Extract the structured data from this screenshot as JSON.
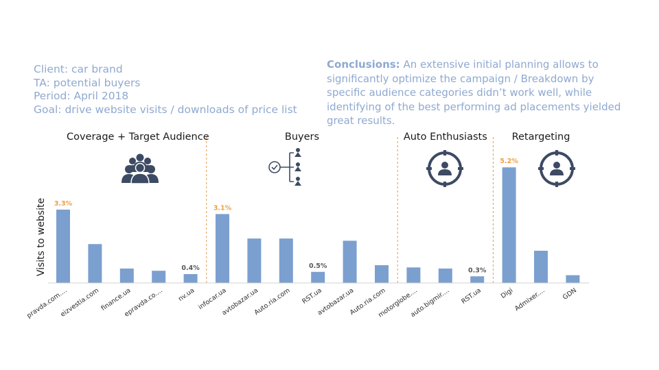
{
  "info": {
    "client": "Client: car brand",
    "ta": "TA:  potential buyers",
    "period": "Period: April 2018",
    "goal": "Goal: drive website visits / downloads of price list"
  },
  "conclusions": {
    "label": "Conclusions:",
    "text": " An extensive initial planning allows to significantly optimize the campaign / Breakdown by specific audience categories didn’t work well, while identifying of the best performing ad placements yielded great results."
  },
  "icons": [
    "group-people-icon",
    "buyers-checklist-icon",
    "target-person-icon",
    "target-person-icon"
  ],
  "chart_data": {
    "type": "bar",
    "ylabel": "Visits to website",
    "bar_color": "#7ba0cf",
    "highlight_label_color": "#f0a040",
    "default_label_color": "#595959",
    "divider_color": "#e39a4a",
    "sections": [
      {
        "title": "Coverage + Target Audience",
        "bars": [
          {
            "category": "pravda.com....",
            "value": 3.3,
            "label": "3.3%",
            "highlight": true
          },
          {
            "category": "eizvestia.com",
            "value": 1.75
          },
          {
            "category": "finance.ua",
            "value": 0.65
          },
          {
            "category": "epravda.co....",
            "value": 0.55
          },
          {
            "category": "nv.ua",
            "value": 0.4,
            "label": "0.4%",
            "highlight": false
          }
        ]
      },
      {
        "title": "Buyers",
        "bars": [
          {
            "category": "infocar.ua",
            "value": 3.1,
            "label": "3.1%",
            "highlight": true
          },
          {
            "category": "avtobazar.ua",
            "value": 2.0
          },
          {
            "category": "Auto.ria.com",
            "value": 2.0
          },
          {
            "category": "RST.ua",
            "value": 0.5,
            "label": "0.5%",
            "highlight": false
          },
          {
            "category": "avtobazar.ua",
            "value": 1.9
          },
          {
            "category": "Auto.ria.com",
            "value": 0.8
          }
        ]
      },
      {
        "title": "Auto Enthusiasts",
        "bars": [
          {
            "category": "motorglobe....",
            "value": 0.7
          },
          {
            "category": "auto.bigmir....",
            "value": 0.65
          },
          {
            "category": "RST.ua",
            "value": 0.3,
            "label": "0.3%",
            "highlight": false
          }
        ]
      },
      {
        "title": "Retargeting",
        "bars": [
          {
            "category": "Digi",
            "value": 5.2,
            "label": "5.2%",
            "highlight": true
          },
          {
            "category": "Admixer....",
            "value": 1.45
          },
          {
            "category": "GDN",
            "value": 0.35
          }
        ]
      }
    ],
    "ylim": [
      0,
      5.3
    ]
  }
}
